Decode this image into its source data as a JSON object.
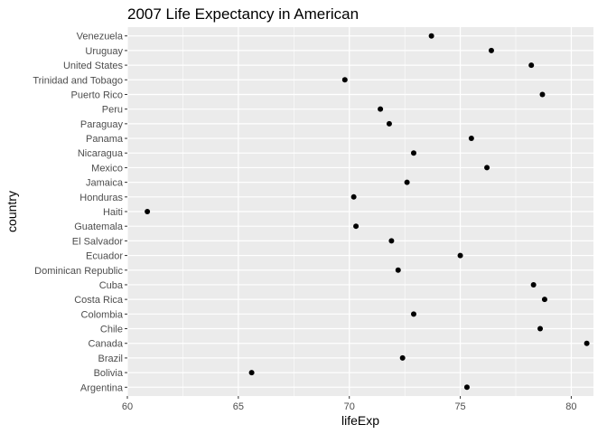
{
  "chart_data": {
    "type": "scatter",
    "title": "2007 Life Expectancy in American",
    "xlabel": "lifeExp",
    "ylabel": "country",
    "xlim": [
      60,
      81
    ],
    "x_ticks": [
      60,
      65,
      70,
      75,
      80
    ],
    "grid": true,
    "colors": {
      "panel": "#ebebeb",
      "grid": "#ffffff",
      "point": "#000000",
      "tick_text": "#4d4d4d",
      "tick_mark": "#333333"
    },
    "categories": [
      "Argentina",
      "Bolivia",
      "Brazil",
      "Canada",
      "Chile",
      "Colombia",
      "Costa Rica",
      "Cuba",
      "Dominican Republic",
      "Ecuador",
      "El Salvador",
      "Guatemala",
      "Haiti",
      "Honduras",
      "Jamaica",
      "Mexico",
      "Nicaragua",
      "Panama",
      "Paraguay",
      "Peru",
      "Puerto Rico",
      "Trinidad and Tobago",
      "United States",
      "Uruguay",
      "Venezuela"
    ],
    "values": [
      75.3,
      65.6,
      72.4,
      80.7,
      78.6,
      72.9,
      78.8,
      78.3,
      72.2,
      75.0,
      71.9,
      70.3,
      60.9,
      70.2,
      72.6,
      76.2,
      72.9,
      75.5,
      71.8,
      71.4,
      78.7,
      69.8,
      78.2,
      76.4,
      73.7
    ]
  }
}
